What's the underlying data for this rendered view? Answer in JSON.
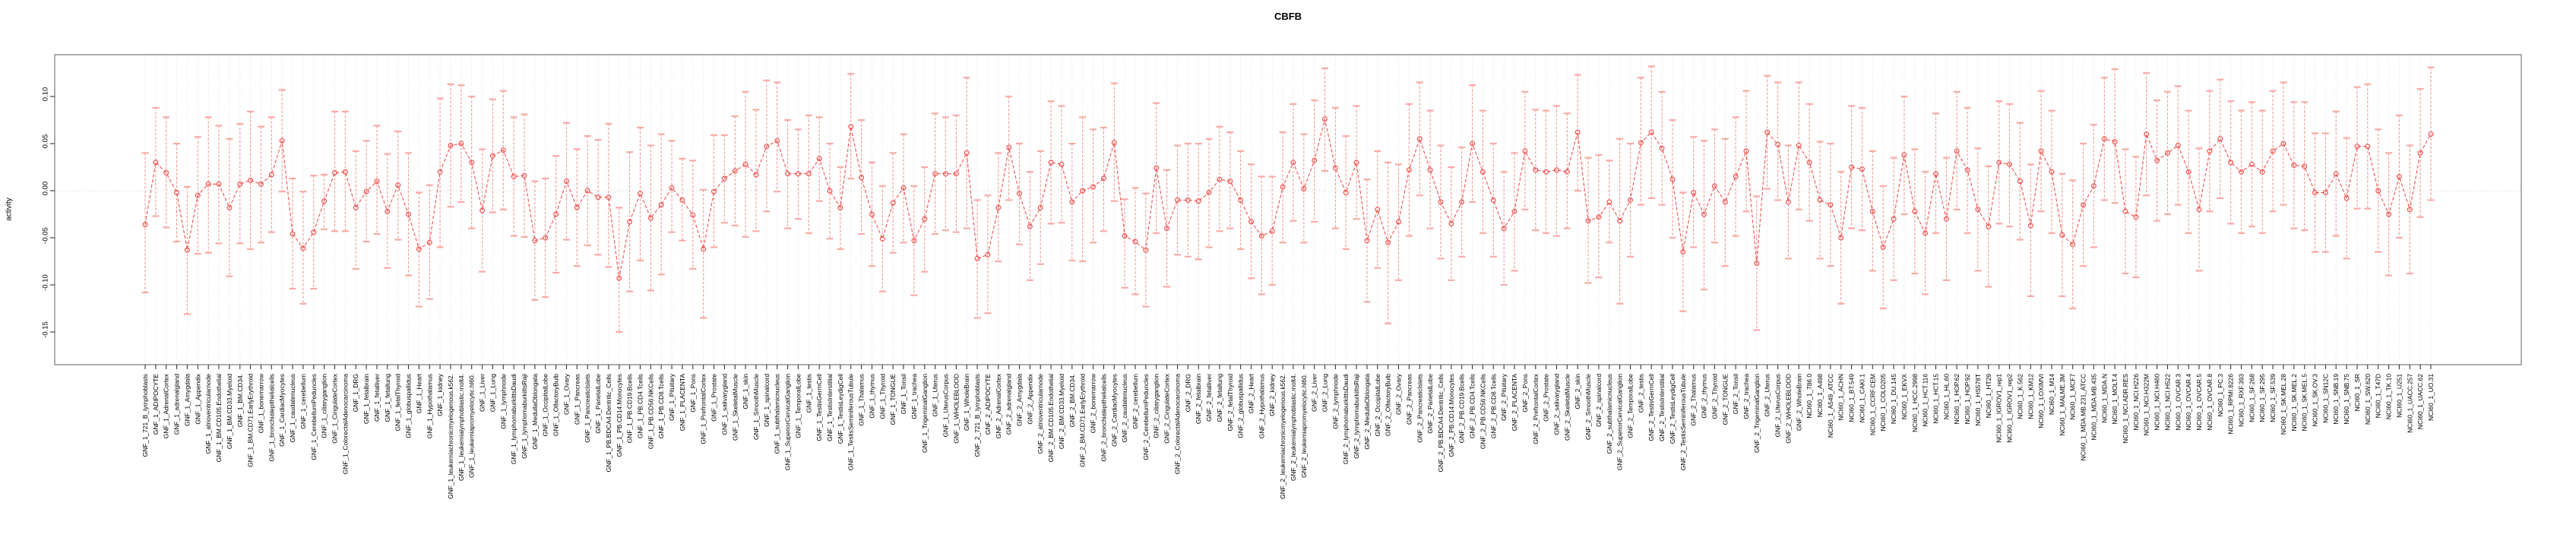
{
  "title": "CBFB",
  "chart_data": {
    "type": "line",
    "subtype": "points-with-error-bars",
    "title": "CBFB",
    "xlabel": "",
    "ylabel": "activity",
    "ylim": [
      -0.185,
      0.145
    ],
    "yticks": [
      0.1,
      0.05,
      0.0,
      -0.05,
      -0.1,
      -0.15
    ],
    "ytick_labels": [
      "0.10",
      "0.05",
      "0.00",
      "-0.05",
      "-0.10",
      "-0.15"
    ],
    "grid": "vertical dotted line per category; horizontal dotted line at y=0",
    "legend": "none",
    "colors": {
      "point": "#ef5350",
      "series_line": "#ef5350",
      "error_line": "#f4958d",
      "error_cap": "#f8aba5",
      "gridline": "#d9d9d9",
      "zero_line": "#c8c8c8",
      "axis_box": "#8c8c8c",
      "tick": "#333333",
      "text": "#000000"
    },
    "categories": [
      "GNF_1_721_B_lymphoblasts",
      "GNF_1_ADIPOCYTE",
      "GNF_1_AdrenalCortex",
      "GNF_1_adrenalgland",
      "GNF_1_Amygdala",
      "GNF_1_Appendix",
      "GNF_1_atrioventricularnode",
      "GNF_1_BM.CD105.Endothelial",
      "GNF_1_BM.CD33.Myeloid",
      "GNF_1_BM.CD34.",
      "GNF_1_BM.CD71.EarlyErythroid",
      "GNF_1_bonemarrow",
      "GNF_1_bronchialepithelialcells",
      "GNF_1_CardiacMyocytes",
      "GNF_1_caudatenucleus",
      "GNF_1_cerebellum",
      "GNF_1_CerebellumPeduncles",
      "GNF_1_ciliaryganglion",
      "GNF_1_CingulateCortex",
      "GNF_1_ColorectalAdenocarcinoma",
      "GNF_1_DRG",
      "GNF_1_fetalbrain",
      "GNF_1_fetalliver",
      "GNF_1_fetallung",
      "GNF_1_fetalThyroid",
      "GNF_1_globuspallidus",
      "GNF_1_Heart",
      "GNF_1_Hypothalamus",
      "GNF_1_kidney",
      "GNF_1_leukemiachronicmyelogenous.k562.",
      "GNF_1_leukemialymphoblastic.molt4.",
      "GNF_1_leukemiapromyelocytic.hl60.",
      "GNF_1_Liver",
      "GNF_1_Lung",
      "GNF_1_lymphnode",
      "GNF_1_lymphomaburkittsDaudi",
      "GNF_1_lymphomaburkittsRaji",
      "GNF_1_MedullaOblongata",
      "GNF_1_OccipitalLobe",
      "GNF_1_OlfactoryBulb",
      "GNF_1_Ovary",
      "GNF_1_Pancreas",
      "GNF_1_PancreaticIslets",
      "GNF_1_ParietalLobe",
      "GNF_1_PB.BDCA4.Dentritic_Cells",
      "GNF_1_PB.CD14.Monocytes",
      "GNF_1_PB.CD19.Bcells",
      "GNF_1_PB.CD4.Tcells",
      "GNF_1_PB.CD56.NKCells",
      "GNF_1_PB.CD8.Tcells",
      "GNF_1_Pituitary",
      "GNF_1_PLACENTA",
      "GNF_1_Pons",
      "GNF_1_PrefrontalCortex",
      "GNF_1_Prostate",
      "GNF_1_salivarygland",
      "GNF_1_SkeletalMuscle",
      "GNF_1_skin",
      "GNF_1_SmoothMuscle",
      "GNF_1_spinalcord",
      "GNF_1_subthalamicnucleus",
      "GNF_1_SuperiorCervicalGanglion",
      "GNF_1_TemporalLobe",
      "GNF_1_testis",
      "GNF_1_TestisGermCell",
      "GNF_1_TestisInterstitial",
      "GNF_1_TestisLeydigCell",
      "GNF_1_TestisSeminiferousTubule",
      "GNF_1_Thalamus",
      "GNF_1_thymus",
      "GNF_1_Thyroid",
      "GNF_1_TONGUE",
      "GNF_1_Tonsil",
      "GNF_1_trachea",
      "GNF_1_TrigeminalGanglion",
      "GNF_1_Uterus",
      "GNF_1_UterusCorpus",
      "GNF_1_WHOLEBLOOD",
      "GNF_1_WholeBrain",
      "GNF_2_721_B_lymphoblasts",
      "GNF_2_ADIPOCYTE",
      "GNF_2_AdrenalCortex",
      "GNF_2_adrenalgland",
      "GNF_2_Amygdala",
      "GNF_2_Appendix",
      "GNF_2_atrioventricularnode",
      "GNF_2_BM.CD105.Endothelial",
      "GNF_2_BM.CD33.Myeloid",
      "GNF_2_BM.CD34.",
      "GNF_2_BM.CD71.EarlyErythroid",
      "GNF_2_bonemarrow",
      "GNF_2_bronchialepithelialcells",
      "GNF_2_CardiacMyocytes",
      "GNF_2_caudatenucleus",
      "GNF_2_cerebellum",
      "GNF_2_CerebellumPeduncles",
      "GNF_2_ciliaryganglion",
      "GNF_2_CingulateCortex",
      "GNF_2_ColorectalAdenocarcinoma",
      "GNF_2_DRG",
      "GNF_2_fetalbrain",
      "GNF_2_fetalliver",
      "GNF_2_fetallung",
      "GNF_2_fetalThyroid",
      "GNF_2_globuspallidus",
      "GNF_2_Heart",
      "GNF_2_Hypothalamus",
      "GNF_2_kidney",
      "GNF_2_leukemiachronicmyelogenous.k562.",
      "GNF_2_leukemialymphoblastic.molt4.",
      "GNF_2_leukemiapromyelocytic.hl60.",
      "GNF_2_Liver",
      "GNF_2_Lung",
      "GNF_2_lymphnode",
      "GNF_2_lymphomaburkittsDaudi",
      "GNF_2_lymphomaburkittsRaji",
      "GNF_2_MedullaOblongata",
      "GNF_2_OccipitalLobe",
      "GNF_2_OlfactoryBulb",
      "GNF_2_Ovary",
      "GNF_2_Pancreas",
      "GNF_2_PancreaticIslets",
      "GNF_2_ParietalLobe",
      "GNF_2_PB.BDCA4.Dentritic_Cells",
      "GNF_2_PB.CD14.Monocytes",
      "GNF_2_PB.CD19.Bcells",
      "GNF_2_PB.CD4.Tcells",
      "GNF_2_PB.CD56.NKCells",
      "GNF_2_PB.CD8.Tcells",
      "GNF_2_Pituitary",
      "GNF_2_PLACENTA",
      "GNF_2_Pons",
      "GNF_2_PrefrontalCortex",
      "GNF_2_Prostate",
      "GNF_2_salivarygland",
      "GNF_2_SkeletalMuscle",
      "GNF_2_skin",
      "GNF_2_SmoothMuscle",
      "GNF_2_spinalcord",
      "GNF_2_subthalamicnucleus",
      "GNF_2_SuperiorCervicalGanglion",
      "GNF_2_TemporalLobe",
      "GNF_2_testis",
      "GNF_2_TestisGermCell",
      "GNF_2_TestisInterstitial",
      "GNF_2_TestisLeydigCell",
      "GNF_2_TestisSeminiferousTubule",
      "GNF_2_Thalamus",
      "GNF_2_thymus",
      "GNF_2_Thyroid",
      "GNF_2_TONGUE",
      "GNF_2_Tonsil",
      "GNF_2_trachea",
      "GNF_2_TrigeminalGanglion",
      "GNF_2_Uterus",
      "GNF_2_UterusCorpus",
      "GNF_2_WHOLEBLOOD",
      "GNF_2_WholeBrain",
      "NCI60_1_786.0",
      "NCI60_1_A498",
      "NCI60_1_A549_ATCC",
      "NCI60_1_ACHN",
      "NCI60_1_BT.549",
      "NCI60_1_CAKI.1",
      "NCI60_1_CCRF.CEM",
      "NCI60_1_COLO205",
      "NCI60_1_DU.145",
      "NCI60_1_EKVX",
      "NCI60_1_HCC.2998",
      "NCI60_1_HCT.116",
      "NCI60_1_HCT.15",
      "NCI60_1_HL.60",
      "NCI60_1_HOP.62",
      "NCI60_1_HOP.92",
      "NCI60_1_HS578T",
      "NCI60_1_HT29",
      "NCI60_1_IGROV1_rep1",
      "NCI60_1_IGROV1_rep2",
      "NCI60_1_K.562",
      "NCI60_1_KM12",
      "NCI60_1_LOXIMVI",
      "NCI60_1_M14",
      "NCI60_1_MALME.3M",
      "NCI60_1_MCF7",
      "NCI60_1_MDA.MB.231_ATCC",
      "NCI60_1_MDA.MB.435",
      "NCI60_1_MDA.N",
      "NCI60_1_MOLT.4",
      "NCI60_1_NCI.ADR.RES",
      "NCI60_1_NCI.H226",
      "NCI60_1_NCI.H322M",
      "NCI60_1_NCI.H460",
      "NCI60_1_NCI.H522",
      "NCI60_1_OVCAR.3",
      "NCI60_1_OVCAR.4",
      "NCI60_1_OVCAR.5",
      "NCI60_1_OVCAR.8",
      "NCI60_1_PC.3",
      "NCI60_1_RPMI.8226",
      "NCI60_1_RXF.393",
      "NCI60_1_SF.268",
      "NCI60_1_SF.295",
      "NCI60_1_SF.539",
      "NCI60_1_SK.MEL.28",
      "NCI60_1_SK.MEL.2",
      "NCI60_1_SK.MEL.5",
      "NCI60_1_SK.OV.3",
      "NCI60_1_SN12C",
      "NCI60_1_SNB.19",
      "NCI60_1_SNB.75",
      "NCI60_1_SR",
      "NCI60_1_SW.620",
      "NCI60_1_T47D",
      "NCI60_1_TK.10",
      "NCI60_1_U251",
      "NCI60_1_UACC.257",
      "NCI60_1_UACC.62",
      "NCI60_1_UO.31"
    ],
    "values": [
      -0.036,
      0.03,
      0.019,
      -0.002,
      -0.063,
      -0.005,
      0.007,
      0.007,
      -0.018,
      0.007,
      0.011,
      0.007,
      0.017,
      0.053,
      -0.046,
      -0.061,
      -0.044,
      -0.011,
      0.019,
      0.02,
      -0.018,
      -0.001,
      0.01,
      -0.022,
      0.006,
      -0.025,
      -0.062,
      -0.055,
      0.02,
      0.048,
      0.05,
      0.03,
      -0.021,
      0.037,
      0.043,
      0.015,
      0.016,
      -0.053,
      -0.05,
      -0.025,
      0.01,
      -0.018,
      0.0,
      -0.007,
      -0.007,
      -0.093,
      -0.033,
      -0.003,
      -0.029,
      -0.015,
      0.003,
      -0.01,
      -0.026,
      -0.062,
      -0.001,
      0.013,
      0.021,
      0.028,
      0.017,
      0.047,
      0.053,
      0.018,
      0.018,
      0.018,
      0.034,
      0.0,
      -0.018,
      0.068,
      0.014,
      -0.025,
      -0.051,
      -0.013,
      0.003,
      -0.053,
      -0.03,
      0.018,
      0.018,
      0.018,
      0.04,
      -0.072,
      -0.068,
      -0.018,
      0.046,
      -0.003,
      -0.038,
      -0.018,
      0.03,
      0.028,
      -0.012,
      0.0,
      0.004,
      0.013,
      0.051,
      -0.048,
      -0.054,
      -0.063,
      0.024,
      -0.04,
      -0.01,
      -0.01,
      -0.011,
      -0.002,
      0.012,
      0.01,
      -0.01,
      -0.033,
      -0.048,
      -0.043,
      0.004,
      0.03,
      0.002,
      0.032,
      0.076,
      0.024,
      -0.002,
      0.03,
      -0.053,
      -0.02,
      -0.055,
      -0.033,
      0.022,
      0.055,
      0.022,
      -0.012,
      -0.035,
      -0.012,
      0.05,
      0.02,
      -0.01,
      -0.04,
      -0.022,
      0.042,
      0.022,
      0.02,
      0.022,
      0.02,
      0.062,
      -0.032,
      -0.028,
      -0.012,
      -0.032,
      -0.01,
      0.051,
      0.062,
      0.045,
      0.012,
      -0.065,
      -0.002,
      -0.025,
      0.005,
      -0.012,
      0.015,
      0.042,
      -0.077,
      0.062,
      0.049,
      -0.012,
      0.048,
      0.03,
      -0.01,
      -0.015,
      -0.05,
      0.025,
      0.023,
      -0.022,
      -0.06,
      -0.03,
      0.038,
      -0.022,
      -0.045,
      0.018,
      -0.03,
      0.042,
      0.022,
      -0.02,
      -0.038,
      0.03,
      0.028,
      0.01,
      -0.037,
      0.042,
      0.02,
      -0.047,
      -0.057,
      -0.015,
      0.005,
      0.055,
      0.052,
      -0.022,
      -0.028,
      0.06,
      0.032,
      0.04,
      0.048,
      0.02,
      -0.02,
      0.042,
      0.055,
      0.03,
      0.02,
      0.028,
      0.02,
      0.042,
      0.05,
      0.027,
      0.026,
      -0.002,
      -0.002,
      0.018,
      -0.008,
      0.047,
      0.047,
      0.0,
      -0.025,
      0.015,
      -0.02,
      0.04,
      0.06
    ],
    "err_low": [
      -0.108,
      -0.027,
      -0.039,
      -0.054,
      -0.131,
      -0.067,
      -0.066,
      -0.056,
      -0.091,
      -0.056,
      -0.062,
      -0.055,
      -0.044,
      -0.001,
      -0.104,
      -0.12,
      -0.104,
      -0.041,
      -0.043,
      -0.043,
      -0.083,
      -0.054,
      -0.046,
      -0.082,
      -0.052,
      -0.09,
      -0.123,
      -0.115,
      -0.06,
      -0.017,
      -0.012,
      -0.04,
      -0.086,
      -0.023,
      -0.02,
      -0.048,
      -0.049,
      -0.116,
      -0.113,
      -0.087,
      -0.052,
      -0.08,
      -0.058,
      -0.068,
      -0.081,
      -0.15,
      -0.107,
      -0.074,
      -0.106,
      -0.089,
      -0.044,
      -0.053,
      -0.083,
      -0.135,
      -0.06,
      -0.034,
      -0.037,
      -0.049,
      -0.043,
      -0.022,
      -0.001,
      -0.04,
      -0.03,
      -0.045,
      -0.011,
      -0.051,
      -0.062,
      0.013,
      -0.046,
      -0.08,
      -0.107,
      -0.066,
      -0.055,
      -0.111,
      -0.086,
      -0.046,
      -0.042,
      -0.044,
      -0.04,
      -0.135,
      -0.13,
      -0.075,
      -0.01,
      -0.057,
      -0.095,
      -0.078,
      -0.035,
      -0.034,
      -0.074,
      -0.075,
      -0.055,
      -0.043,
      -0.011,
      -0.103,
      -0.11,
      -0.123,
      -0.045,
      -0.102,
      -0.068,
      -0.07,
      -0.073,
      -0.06,
      -0.043,
      -0.04,
      -0.062,
      -0.093,
      -0.11,
      -0.1,
      -0.055,
      -0.032,
      -0.055,
      -0.033,
      0.021,
      -0.04,
      -0.062,
      -0.03,
      -0.118,
      -0.082,
      -0.141,
      -0.095,
      -0.048,
      -0.005,
      -0.04,
      -0.072,
      -0.095,
      -0.07,
      -0.012,
      -0.045,
      -0.07,
      -0.1,
      -0.085,
      -0.02,
      -0.042,
      -0.045,
      -0.048,
      -0.04,
      0.0,
      -0.098,
      -0.092,
      -0.055,
      -0.12,
      -0.07,
      -0.015,
      -0.008,
      -0.015,
      -0.05,
      -0.128,
      -0.06,
      -0.105,
      -0.055,
      -0.08,
      -0.048,
      -0.022,
      -0.148,
      0.002,
      -0.01,
      -0.072,
      -0.02,
      -0.032,
      -0.072,
      -0.08,
      -0.12,
      -0.04,
      -0.042,
      -0.085,
      -0.125,
      -0.095,
      -0.025,
      -0.088,
      -0.11,
      -0.045,
      -0.095,
      -0.02,
      -0.045,
      -0.085,
      -0.102,
      -0.035,
      -0.038,
      -0.052,
      -0.112,
      -0.022,
      -0.045,
      -0.112,
      -0.125,
      -0.08,
      -0.06,
      -0.01,
      -0.013,
      -0.088,
      -0.092,
      -0.005,
      -0.032,
      -0.025,
      -0.015,
      -0.045,
      -0.085,
      -0.022,
      -0.008,
      -0.035,
      -0.045,
      -0.038,
      -0.045,
      -0.022,
      -0.015,
      -0.04,
      -0.042,
      -0.065,
      -0.065,
      -0.048,
      -0.072,
      -0.019,
      -0.019,
      -0.065,
      -0.09,
      -0.05,
      -0.088,
      -0.028,
      -0.01
    ],
    "err_high": [
      0.04,
      0.088,
      0.078,
      0.05,
      0.004,
      0.057,
      0.078,
      0.069,
      0.055,
      0.071,
      0.084,
      0.068,
      0.078,
      0.107,
      0.013,
      -0.001,
      0.016,
      0.017,
      0.084,
      0.084,
      0.042,
      0.053,
      0.069,
      0.039,
      0.063,
      0.04,
      -0.002,
      0.006,
      0.098,
      0.113,
      0.112,
      0.1,
      0.044,
      0.097,
      0.106,
      0.078,
      0.081,
      0.01,
      0.013,
      0.037,
      0.072,
      0.044,
      0.058,
      0.054,
      0.071,
      -0.018,
      0.041,
      0.067,
      0.048,
      0.06,
      0.053,
      0.034,
      0.032,
      0.001,
      0.059,
      0.059,
      0.079,
      0.105,
      0.086,
      0.117,
      0.115,
      0.075,
      0.065,
      0.08,
      0.078,
      0.05,
      0.025,
      0.124,
      0.075,
      0.03,
      0.005,
      0.04,
      0.06,
      0.005,
      0.025,
      0.082,
      0.078,
      0.08,
      0.12,
      -0.01,
      -0.005,
      0.04,
      0.1,
      0.05,
      0.02,
      0.042,
      0.095,
      0.09,
      0.05,
      0.078,
      0.065,
      0.067,
      0.114,
      -0.009,
      0.003,
      -0.003,
      0.093,
      0.022,
      0.048,
      0.05,
      0.05,
      0.055,
      0.068,
      0.062,
      0.042,
      0.028,
      0.015,
      0.015,
      0.062,
      0.092,
      0.06,
      0.096,
      0.13,
      0.088,
      0.058,
      0.09,
      0.012,
      0.042,
      0.03,
      0.028,
      0.092,
      0.115,
      0.085,
      0.048,
      0.025,
      0.046,
      0.112,
      0.085,
      0.05,
      0.02,
      0.04,
      0.105,
      0.086,
      0.085,
      0.09,
      0.082,
      0.123,
      0.035,
      0.038,
      0.032,
      0.055,
      0.05,
      0.12,
      0.132,
      0.105,
      0.075,
      -0.002,
      0.057,
      0.053,
      0.065,
      0.055,
      0.078,
      0.106,
      -0.006,
      0.122,
      0.115,
      0.048,
      0.115,
      0.092,
      0.052,
      0.05,
      0.02,
      0.09,
      0.088,
      0.042,
      0.005,
      0.035,
      0.1,
      0.044,
      0.02,
      0.082,
      0.035,
      0.105,
      0.088,
      0.045,
      0.026,
      0.095,
      0.092,
      0.072,
      0.028,
      0.106,
      0.085,
      0.018,
      0.011,
      0.05,
      0.07,
      0.12,
      0.129,
      0.044,
      0.036,
      0.125,
      0.096,
      0.105,
      0.111,
      0.085,
      0.045,
      0.106,
      0.118,
      0.095,
      0.085,
      0.094,
      0.085,
      0.106,
      0.115,
      0.094,
      0.094,
      0.061,
      0.061,
      0.084,
      0.056,
      0.11,
      0.113,
      0.065,
      0.04,
      0.08,
      0.048,
      0.108,
      0.131
    ]
  }
}
